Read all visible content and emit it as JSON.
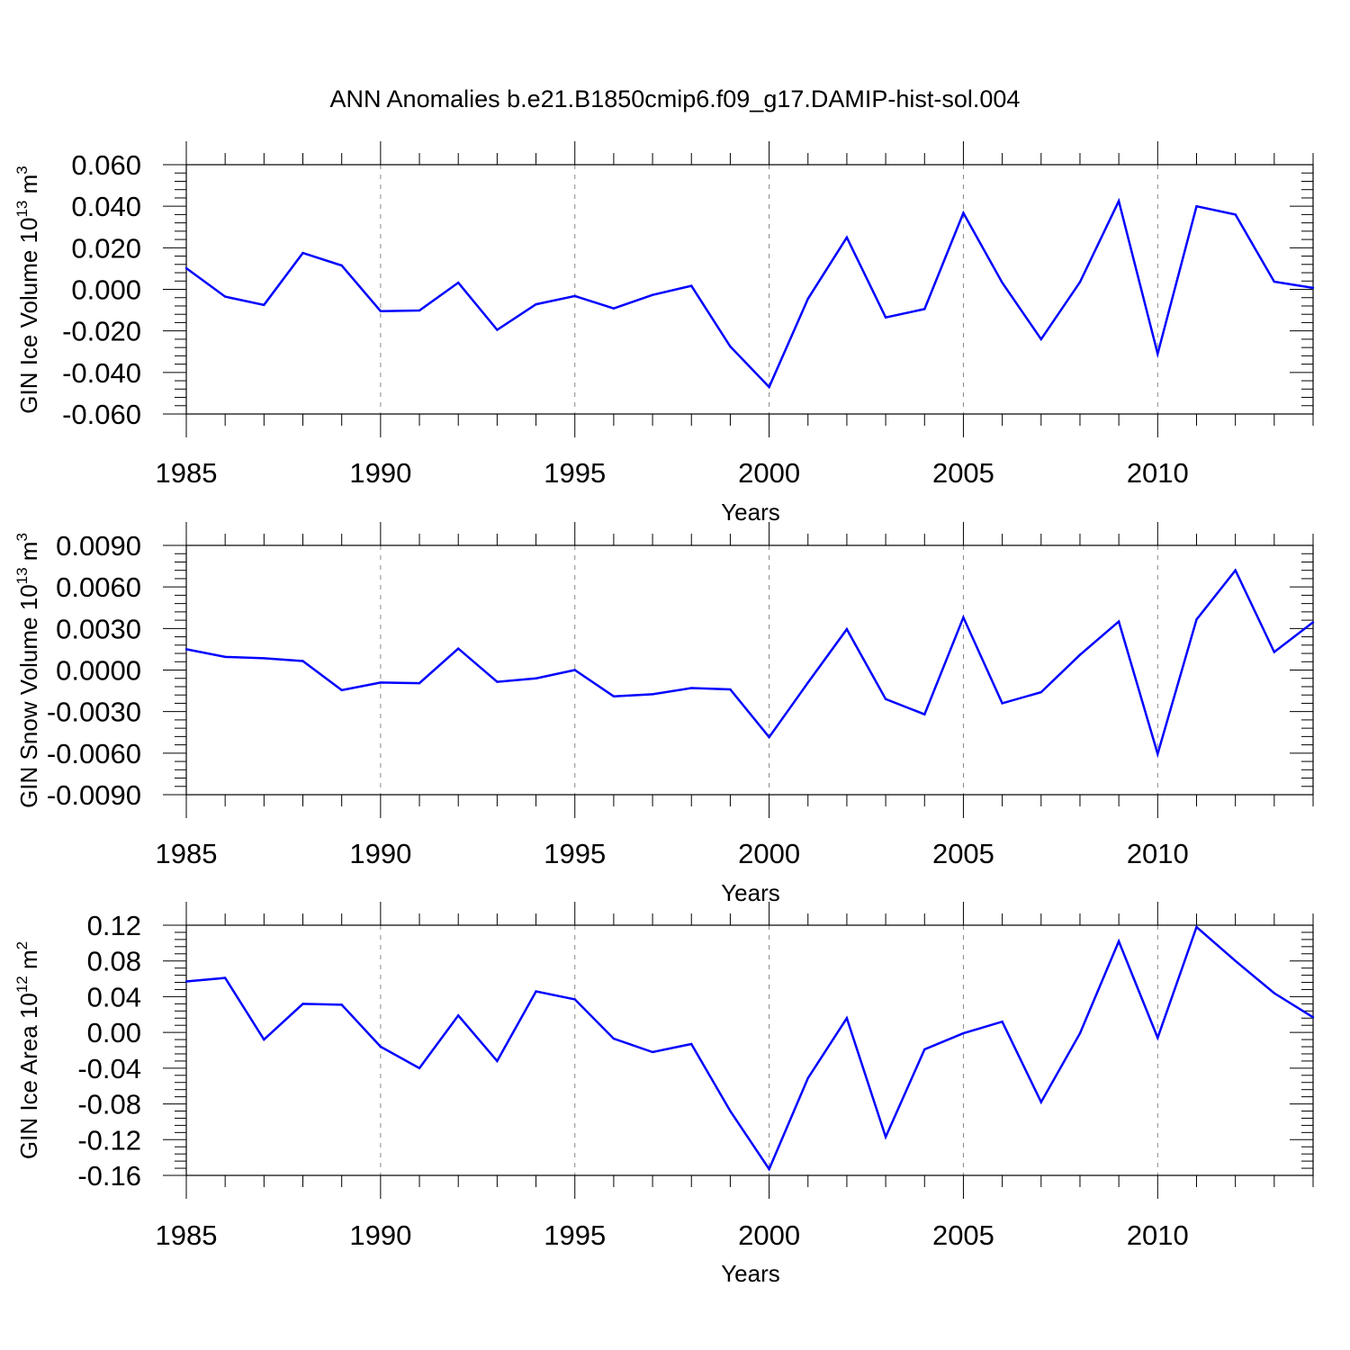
{
  "chart_data": {
    "title": "ANN Anomalies b.e21.B1850cmip6.f09_g17.DAMIP-hist-sol.004",
    "line_color": "#0000ff",
    "grid_color": "#888888",
    "x_tick_labels": [
      "1985",
      "1990",
      "1995",
      "2000",
      "2005",
      "2010"
    ],
    "panels": [
      {
        "type": "line",
        "name": "ice-volume",
        "ylabel_prefix": "GIN Ice Volume 10",
        "ylabel_exp": "13",
        "ylabel_unit": " m",
        "ylabel_unit_exp": "3",
        "xlabel": "Years",
        "xlim": [
          1985,
          2014
        ],
        "ylim": [
          -0.06,
          0.06
        ],
        "y_ticks": [
          0.06,
          0.04,
          0.02,
          0.0,
          -0.02,
          -0.04,
          -0.06
        ],
        "y_tick_labels": [
          "0.060",
          "0.040",
          "0.020",
          "0.000",
          "-0.020",
          "-0.040",
          "-0.060"
        ],
        "x": [
          1985,
          1986,
          1987,
          1988,
          1989,
          1990,
          1991,
          1992,
          1993,
          1994,
          1995,
          1996,
          1997,
          1998,
          1999,
          2000,
          2001,
          2002,
          2003,
          2004,
          2005,
          2006,
          2007,
          2008,
          2009,
          2010,
          2011,
          2012,
          2013,
          2014
        ],
        "values": [
          0.0102,
          -0.0035,
          -0.0075,
          0.0175,
          0.0115,
          -0.0105,
          -0.0102,
          0.0032,
          -0.0195,
          -0.0072,
          -0.0032,
          -0.0092,
          -0.0027,
          0.0017,
          -0.0275,
          -0.047,
          -0.0045,
          0.025,
          -0.0135,
          -0.0095,
          0.0368,
          0.0032,
          -0.024,
          0.0035,
          0.0425,
          -0.031,
          0.04,
          0.036,
          0.0037,
          0.0007
        ]
      },
      {
        "type": "line",
        "name": "snow-volume",
        "ylabel_prefix": "GIN Snow Volume 10",
        "ylabel_exp": "13",
        "ylabel_unit": " m",
        "ylabel_unit_exp": "3",
        "xlabel": "Years",
        "xlim": [
          1985,
          2014
        ],
        "ylim": [
          -0.009,
          0.009
        ],
        "y_ticks": [
          0.009,
          0.006,
          0.003,
          0.0,
          -0.003,
          -0.006,
          -0.009
        ],
        "y_tick_labels": [
          "0.0090",
          "0.0060",
          "0.0030",
          "0.0000",
          "-0.0030",
          "-0.0060",
          "-0.0090"
        ],
        "x": [
          1985,
          1986,
          1987,
          1988,
          1989,
          1990,
          1991,
          1992,
          1993,
          1994,
          1995,
          1996,
          1997,
          1998,
          1999,
          2000,
          2001,
          2002,
          2003,
          2004,
          2005,
          2006,
          2007,
          2008,
          2009,
          2010,
          2011,
          2012,
          2013,
          2014
        ],
        "values": [
          0.0015,
          0.00095,
          0.00085,
          0.00065,
          -0.00145,
          -0.0009,
          -0.00095,
          0.00155,
          -0.00085,
          -0.0006,
          0.0,
          -0.0019,
          -0.00175,
          -0.0013,
          -0.0014,
          -0.00485,
          -0.0009,
          0.00295,
          -0.0021,
          -0.0032,
          0.0038,
          -0.0024,
          -0.0016,
          0.0011,
          0.0035,
          -0.00605,
          0.00365,
          0.0072,
          0.0013,
          0.00345
        ]
      },
      {
        "type": "line",
        "name": "ice-area",
        "ylabel_prefix": "GIN Ice Area 10",
        "ylabel_exp": "12",
        "ylabel_unit": " m",
        "ylabel_unit_exp": "2",
        "xlabel": "Years",
        "xlim": [
          1985,
          2014
        ],
        "ylim": [
          -0.16,
          0.12
        ],
        "y_ticks": [
          0.12,
          0.08,
          0.04,
          0.0,
          -0.04,
          -0.08,
          -0.12,
          -0.16
        ],
        "y_tick_labels": [
          "0.12",
          "0.08",
          "0.04",
          "0.00",
          "-0.04",
          "-0.08",
          "-0.12",
          "-0.16"
        ],
        "x": [
          1985,
          1986,
          1987,
          1988,
          1989,
          1990,
          1991,
          1992,
          1993,
          1994,
          1995,
          1996,
          1997,
          1998,
          1999,
          2000,
          2001,
          2002,
          2003,
          2004,
          2005,
          2006,
          2007,
          2008,
          2009,
          2010,
          2011,
          2012,
          2013,
          2014
        ],
        "values": [
          0.057,
          0.061,
          -0.008,
          0.032,
          0.031,
          -0.016,
          -0.04,
          0.019,
          -0.032,
          0.046,
          0.037,
          -0.007,
          -0.022,
          -0.013,
          -0.088,
          -0.153,
          -0.051,
          0.016,
          -0.117,
          -0.019,
          -0.001,
          0.012,
          -0.078,
          -0.001,
          0.102,
          -0.006,
          0.118,
          0.08,
          0.044,
          0.017
        ]
      }
    ]
  }
}
